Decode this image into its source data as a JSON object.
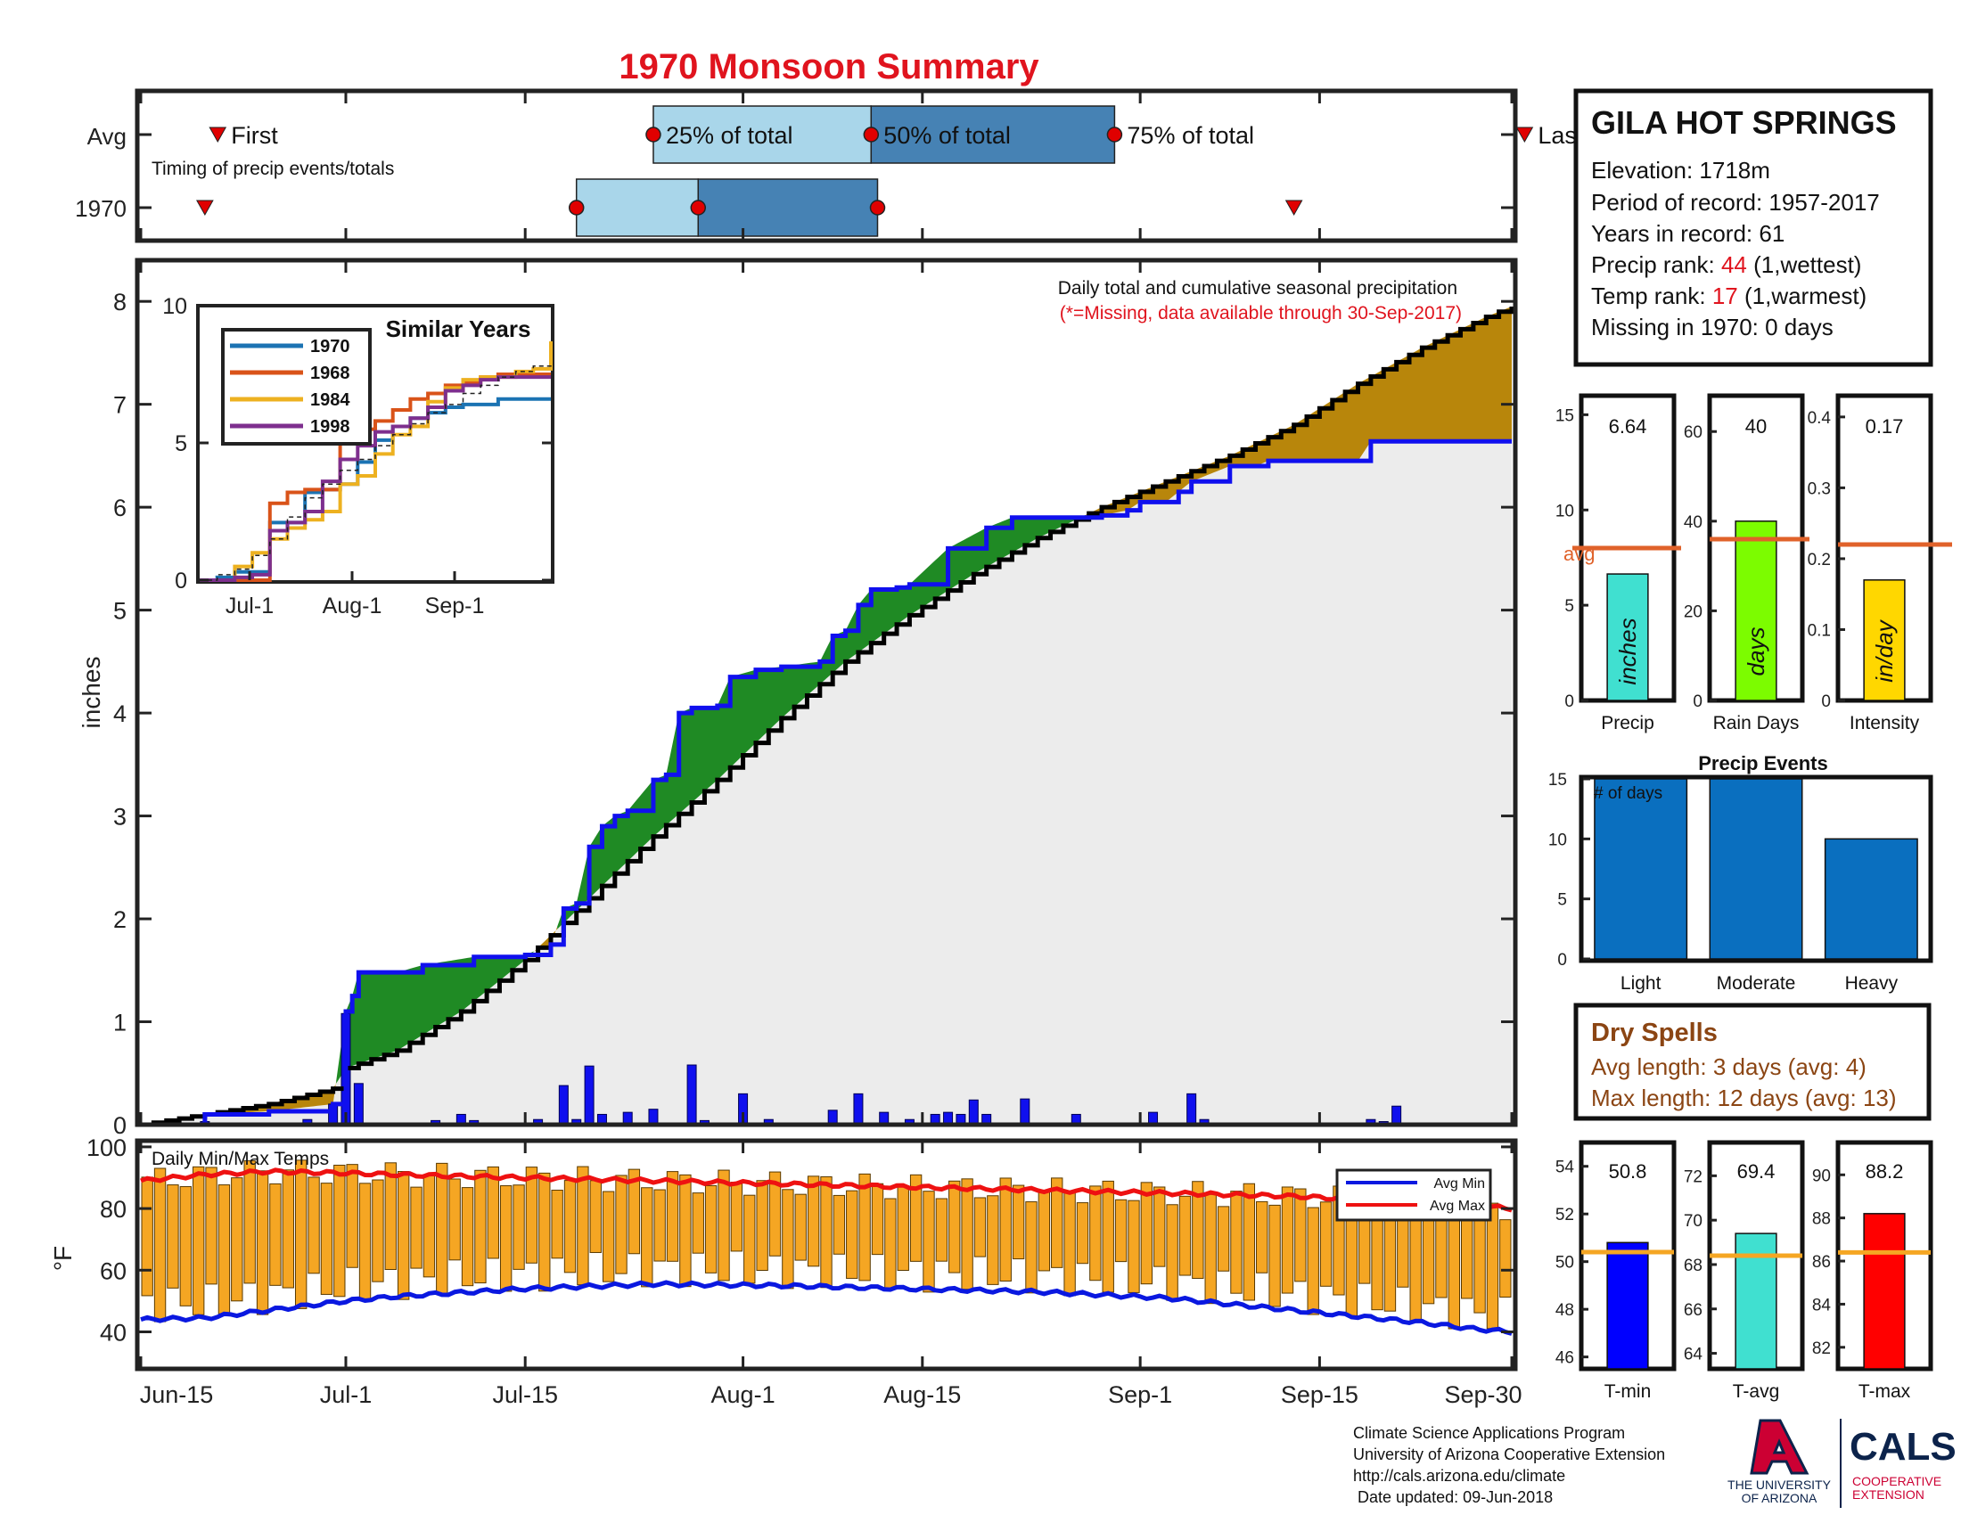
{
  "title": "1970 Monsoon Summary",
  "colors": {
    "title": "#e0141e",
    "wet": "#1f8a24",
    "dry": "#b8860b",
    "cum": "#ececec",
    "obs": "#1010ee",
    "avgline": "#e0622a",
    "temp_bar": "#f5a623",
    "avgmin": "#0a18e0",
    "avgmax": "#ee1111",
    "q25": "#a9d6ea",
    "q50": "#4682b4",
    "marker": "#e00000",
    "ua_red": "#cc0033",
    "ua_blue": "#0c234b"
  },
  "timing": {
    "title": "Timing of precip events/totals",
    "row_labels": [
      "Avg",
      "1970"
    ],
    "first_label": "First",
    "last_label": "Last",
    "q25_label": "25% of total",
    "q50_label": "50% of total",
    "q75_label": "75% of total",
    "avg": {
      "first": 6,
      "q25": 40,
      "q50": 57,
      "q75": 76,
      "last": 108
    },
    "year": {
      "first": 5,
      "q25": 34,
      "q50": 43.5,
      "q75": 57.5,
      "last": 90
    }
  },
  "station": {
    "name": "GILA HOT SPRINGS",
    "elevation": "Elevation: 1718m",
    "period": "Period of record: 1957-2017",
    "years": "Years in record: 61",
    "precip_rank_prefix": "Precip rank: ",
    "precip_rank_value": "44",
    "precip_rank_suffix": " (1,wettest)",
    "temp_rank_prefix": "Temp rank: ",
    "temp_rank_value": "17",
    "temp_rank_suffix": " (1,warmest)",
    "missing": "Missing in 1970: 0 days"
  },
  "main_chart": {
    "title": "Daily total and cumulative seasonal precipitation",
    "note": "(*=Missing, data available through 30-Sep-2017)",
    "ylabel": "inches",
    "ylim": [
      0,
      8.4
    ],
    "yticks": [
      "0",
      "1",
      "2",
      "3",
      "4",
      "5",
      "6",
      "7",
      "8"
    ],
    "xticks": [
      {
        "day": 0,
        "label": "Jun-15"
      },
      {
        "day": 16,
        "label": "Jul-1"
      },
      {
        "day": 30,
        "label": "Jul-15"
      },
      {
        "day": 47,
        "label": "Aug-1"
      },
      {
        "day": 61,
        "label": "Aug-15"
      },
      {
        "day": 78,
        "label": "Sep-1"
      },
      {
        "day": 92,
        "label": "Sep-15"
      },
      {
        "day": 107,
        "label": "Sep-30"
      }
    ],
    "xlim": [
      0,
      107
    ],
    "avg_cumulative": {
      "day": [
        0,
        5,
        10,
        15,
        16,
        20,
        25,
        30,
        35,
        40,
        45,
        50,
        55,
        60,
        65,
        70,
        75,
        80,
        85,
        90,
        95,
        100,
        105,
        107
      ],
      "value": [
        0,
        0.1,
        0.2,
        0.35,
        0.55,
        0.72,
        1.1,
        1.6,
        2.2,
        2.8,
        3.35,
        3.95,
        4.5,
        4.95,
        5.35,
        5.7,
        6.0,
        6.25,
        6.5,
        6.8,
        7.2,
        7.55,
        7.85,
        7.95
      ]
    },
    "obs_cumulative": {
      "day": [
        0,
        5,
        10,
        15,
        16,
        16.5,
        17,
        20,
        22,
        26,
        30,
        32,
        33,
        34,
        35,
        36,
        37,
        38,
        40,
        41,
        42,
        43,
        45,
        46,
        48,
        50,
        53,
        54,
        55,
        56,
        57,
        59,
        60,
        63,
        66,
        68,
        72,
        75,
        77,
        78,
        80,
        81,
        82,
        85,
        87,
        88,
        95,
        96,
        102,
        107
      ],
      "value": [
        0,
        0.1,
        0.13,
        0.2,
        1.1,
        1.25,
        1.48,
        1.48,
        1.55,
        1.63,
        1.65,
        1.75,
        2.1,
        2.15,
        2.7,
        2.9,
        3.0,
        3.05,
        3.35,
        3.4,
        4.0,
        4.05,
        4.07,
        4.35,
        4.42,
        4.45,
        4.5,
        4.75,
        4.8,
        5.05,
        5.2,
        5.22,
        5.25,
        5.6,
        5.8,
        5.9,
        5.9,
        5.92,
        5.97,
        6.05,
        6.05,
        6.15,
        6.25,
        6.4,
        6.4,
        6.45,
        6.45,
        6.64,
        6.64,
        6.64
      ]
    },
    "daily": {
      "day": [
        5,
        13,
        15,
        16,
        17,
        23,
        25,
        26,
        31,
        33,
        34,
        35,
        36,
        38,
        40,
        43,
        44,
        47,
        49,
        54,
        56,
        58,
        60,
        62,
        63,
        64,
        65,
        66,
        69,
        73,
        79,
        82,
        83,
        96,
        97,
        98
      ],
      "value": [
        0.03,
        0.05,
        0.2,
        1.08,
        0.4,
        0.04,
        0.1,
        0.04,
        0.05,
        0.38,
        0.05,
        0.57,
        0.1,
        0.12,
        0.15,
        0.58,
        0.04,
        0.3,
        0.05,
        0.14,
        0.3,
        0.12,
        0.05,
        0.1,
        0.12,
        0.1,
        0.24,
        0.1,
        0.25,
        0.1,
        0.12,
        0.3,
        0.05,
        0.05,
        0.03,
        0.18
      ]
    }
  },
  "inset": {
    "title": "Similar Years",
    "yticks": [
      "0",
      "5",
      "10"
    ],
    "xticks": [
      "Jul-1",
      "Aug-1",
      "Sep-1"
    ],
    "series": [
      {
        "name": "1970",
        "color": "#1b73b3",
        "values": [
          0,
          0.1,
          0.3,
          0.3,
          2.1,
          2.1,
          3.2,
          3.3,
          3.5,
          4.3,
          5.1,
          5.6,
          5.9,
          6.1,
          6.3,
          6.4,
          6.4,
          6.6,
          6.6,
          6.6,
          6.6
        ]
      },
      {
        "name": "1968",
        "color": "#d95319",
        "values": [
          0,
          0,
          0,
          0,
          2.8,
          3.2,
          3.3,
          3.3,
          5.3,
          5.5,
          5.8,
          6.2,
          6.6,
          6.8,
          7.1,
          7.2,
          7.4,
          7.5,
          7.5,
          7.5,
          7.5
        ]
      },
      {
        "name": "1984",
        "color": "#edb120",
        "values": [
          0,
          0,
          0.5,
          1.0,
          1.5,
          1.9,
          2.2,
          2.5,
          3.5,
          3.8,
          4.6,
          5.3,
          5.6,
          6.5,
          7.0,
          7.3,
          7.4,
          7.4,
          7.6,
          7.7,
          8.7
        ]
      },
      {
        "name": "1998",
        "color": "#7e2f8e",
        "values": [
          0,
          0,
          0.1,
          0.2,
          1.8,
          2.1,
          2.5,
          3.6,
          4.4,
          4.9,
          5.4,
          5.6,
          5.9,
          6.3,
          6.9,
          7.1,
          7.3,
          7.4,
          7.4,
          7.4,
          7.4
        ]
      },
      {
        "name": "avg",
        "color": "#222222",
        "values": [
          0,
          0.2,
          0.4,
          0.9,
          1.5,
          2.3,
          3.0,
          3.5,
          4.0,
          4.4,
          4.9,
          5.3,
          5.7,
          6.1,
          6.4,
          6.8,
          7.1,
          7.4,
          7.6,
          7.8,
          7.95
        ]
      }
    ]
  },
  "summary_bars": [
    {
      "label": "Precip",
      "value": 6.64,
      "value_label": "6.64",
      "unit": "inches",
      "avg": 8.0,
      "avg_label": "avg",
      "ymax": 16,
      "yticks": [
        "0",
        "5",
        "10",
        "15"
      ],
      "ytick_vals": [
        0,
        5,
        10,
        15
      ],
      "color": "#40e0d0"
    },
    {
      "label": "Rain Days",
      "value": 40,
      "value_label": "40",
      "unit": "days",
      "avg": 36,
      "ymax": 68,
      "yticks": [
        "0",
        "20",
        "40",
        "60"
      ],
      "ytick_vals": [
        0,
        20,
        40,
        60
      ],
      "color": "#7cfc00"
    },
    {
      "label": "Intensity",
      "value": 0.17,
      "value_label": "0.17",
      "unit": "in/day",
      "avg": 0.22,
      "ymax": 0.43,
      "yticks": [
        "0",
        "0.1",
        "0.2",
        "0.3",
        "0.4"
      ],
      "ytick_vals": [
        0,
        0.1,
        0.2,
        0.3,
        0.4
      ],
      "color": "#ffd700"
    }
  ],
  "precip_events": {
    "title": "Precip Events",
    "ylabel_inside": "# of days",
    "categories": [
      "Light",
      "Moderate",
      "Heavy"
    ],
    "values": [
      15,
      15,
      10
    ],
    "ylim": [
      0,
      15
    ],
    "yticks": [
      "0",
      "5",
      "10",
      "15"
    ]
  },
  "dry_spells": {
    "title": "Dry Spells",
    "avg": "Avg length: 3 days (avg: 4)",
    "max": "Max length: 12 days (avg: 13)"
  },
  "temp_chart": {
    "title": "Daily Min/Max Temps",
    "ylabel": "°F",
    "ylim": [
      28,
      102
    ],
    "yticks": [
      "40",
      "60",
      "80",
      "100"
    ],
    "ytick_vals": [
      40,
      60,
      80,
      100
    ],
    "legend": [
      "Avg Min",
      "Avg Max"
    ],
    "avg_min": {
      "day": [
        0,
        5,
        10,
        16,
        20,
        30,
        40,
        50,
        60,
        70,
        80,
        85,
        90,
        95,
        100,
        104,
        107
      ],
      "value": [
        44,
        44.5,
        47,
        50,
        51.5,
        54,
        55.5,
        55,
        54,
        53,
        51,
        49,
        47,
        45,
        43,
        41,
        40
      ]
    },
    "avg_max": {
      "day": [
        0,
        5,
        10,
        16,
        20,
        30,
        40,
        50,
        60,
        70,
        80,
        85,
        90,
        95,
        100,
        104,
        107
      ],
      "value": [
        89,
        91,
        92,
        91.5,
        91,
        90,
        89,
        88,
        87,
        86,
        85,
        84.5,
        84,
        83,
        82,
        81,
        80
      ]
    }
  },
  "temp_summary": [
    {
      "label": "T-min",
      "value": 50.8,
      "value_label": "50.8",
      "avg": 50.4,
      "ylim": [
        45.5,
        55
      ],
      "yticks": [
        "46",
        "48",
        "50",
        "52",
        "54"
      ],
      "ytick_vals": [
        46,
        48,
        50,
        52,
        54
      ],
      "color": "#0000ff"
    },
    {
      "label": "T-avg",
      "value": 69.4,
      "value_label": "69.4",
      "avg": 68.4,
      "ylim": [
        63.3,
        73.5
      ],
      "yticks": [
        "64",
        "66",
        "68",
        "70",
        "72"
      ],
      "ytick_vals": [
        64,
        66,
        68,
        70,
        72
      ],
      "color": "#40e0d0"
    },
    {
      "label": "T-max",
      "value": 88.2,
      "value_label": "88.2",
      "avg": 86.4,
      "ylim": [
        81,
        91.5
      ],
      "yticks": [
        "82",
        "84",
        "86",
        "88",
        "90"
      ],
      "ytick_vals": [
        82,
        84,
        86,
        88,
        90
      ],
      "color": "#ff0000"
    }
  ],
  "footer": {
    "line1": "Climate Science Applications Program",
    "line2": "University of Arizona Cooperative Extension",
    "line3": "http://cals.arizona.edu/climate",
    "line4": " Date updated: 09-Jun-2018"
  },
  "logos": {
    "ua_line1": "THE UNIVERSITY",
    "ua_line2": "OF ARIZONA",
    "cals": "CALS",
    "coop1": "COOPERATIVE",
    "coop2": "EXTENSION"
  }
}
